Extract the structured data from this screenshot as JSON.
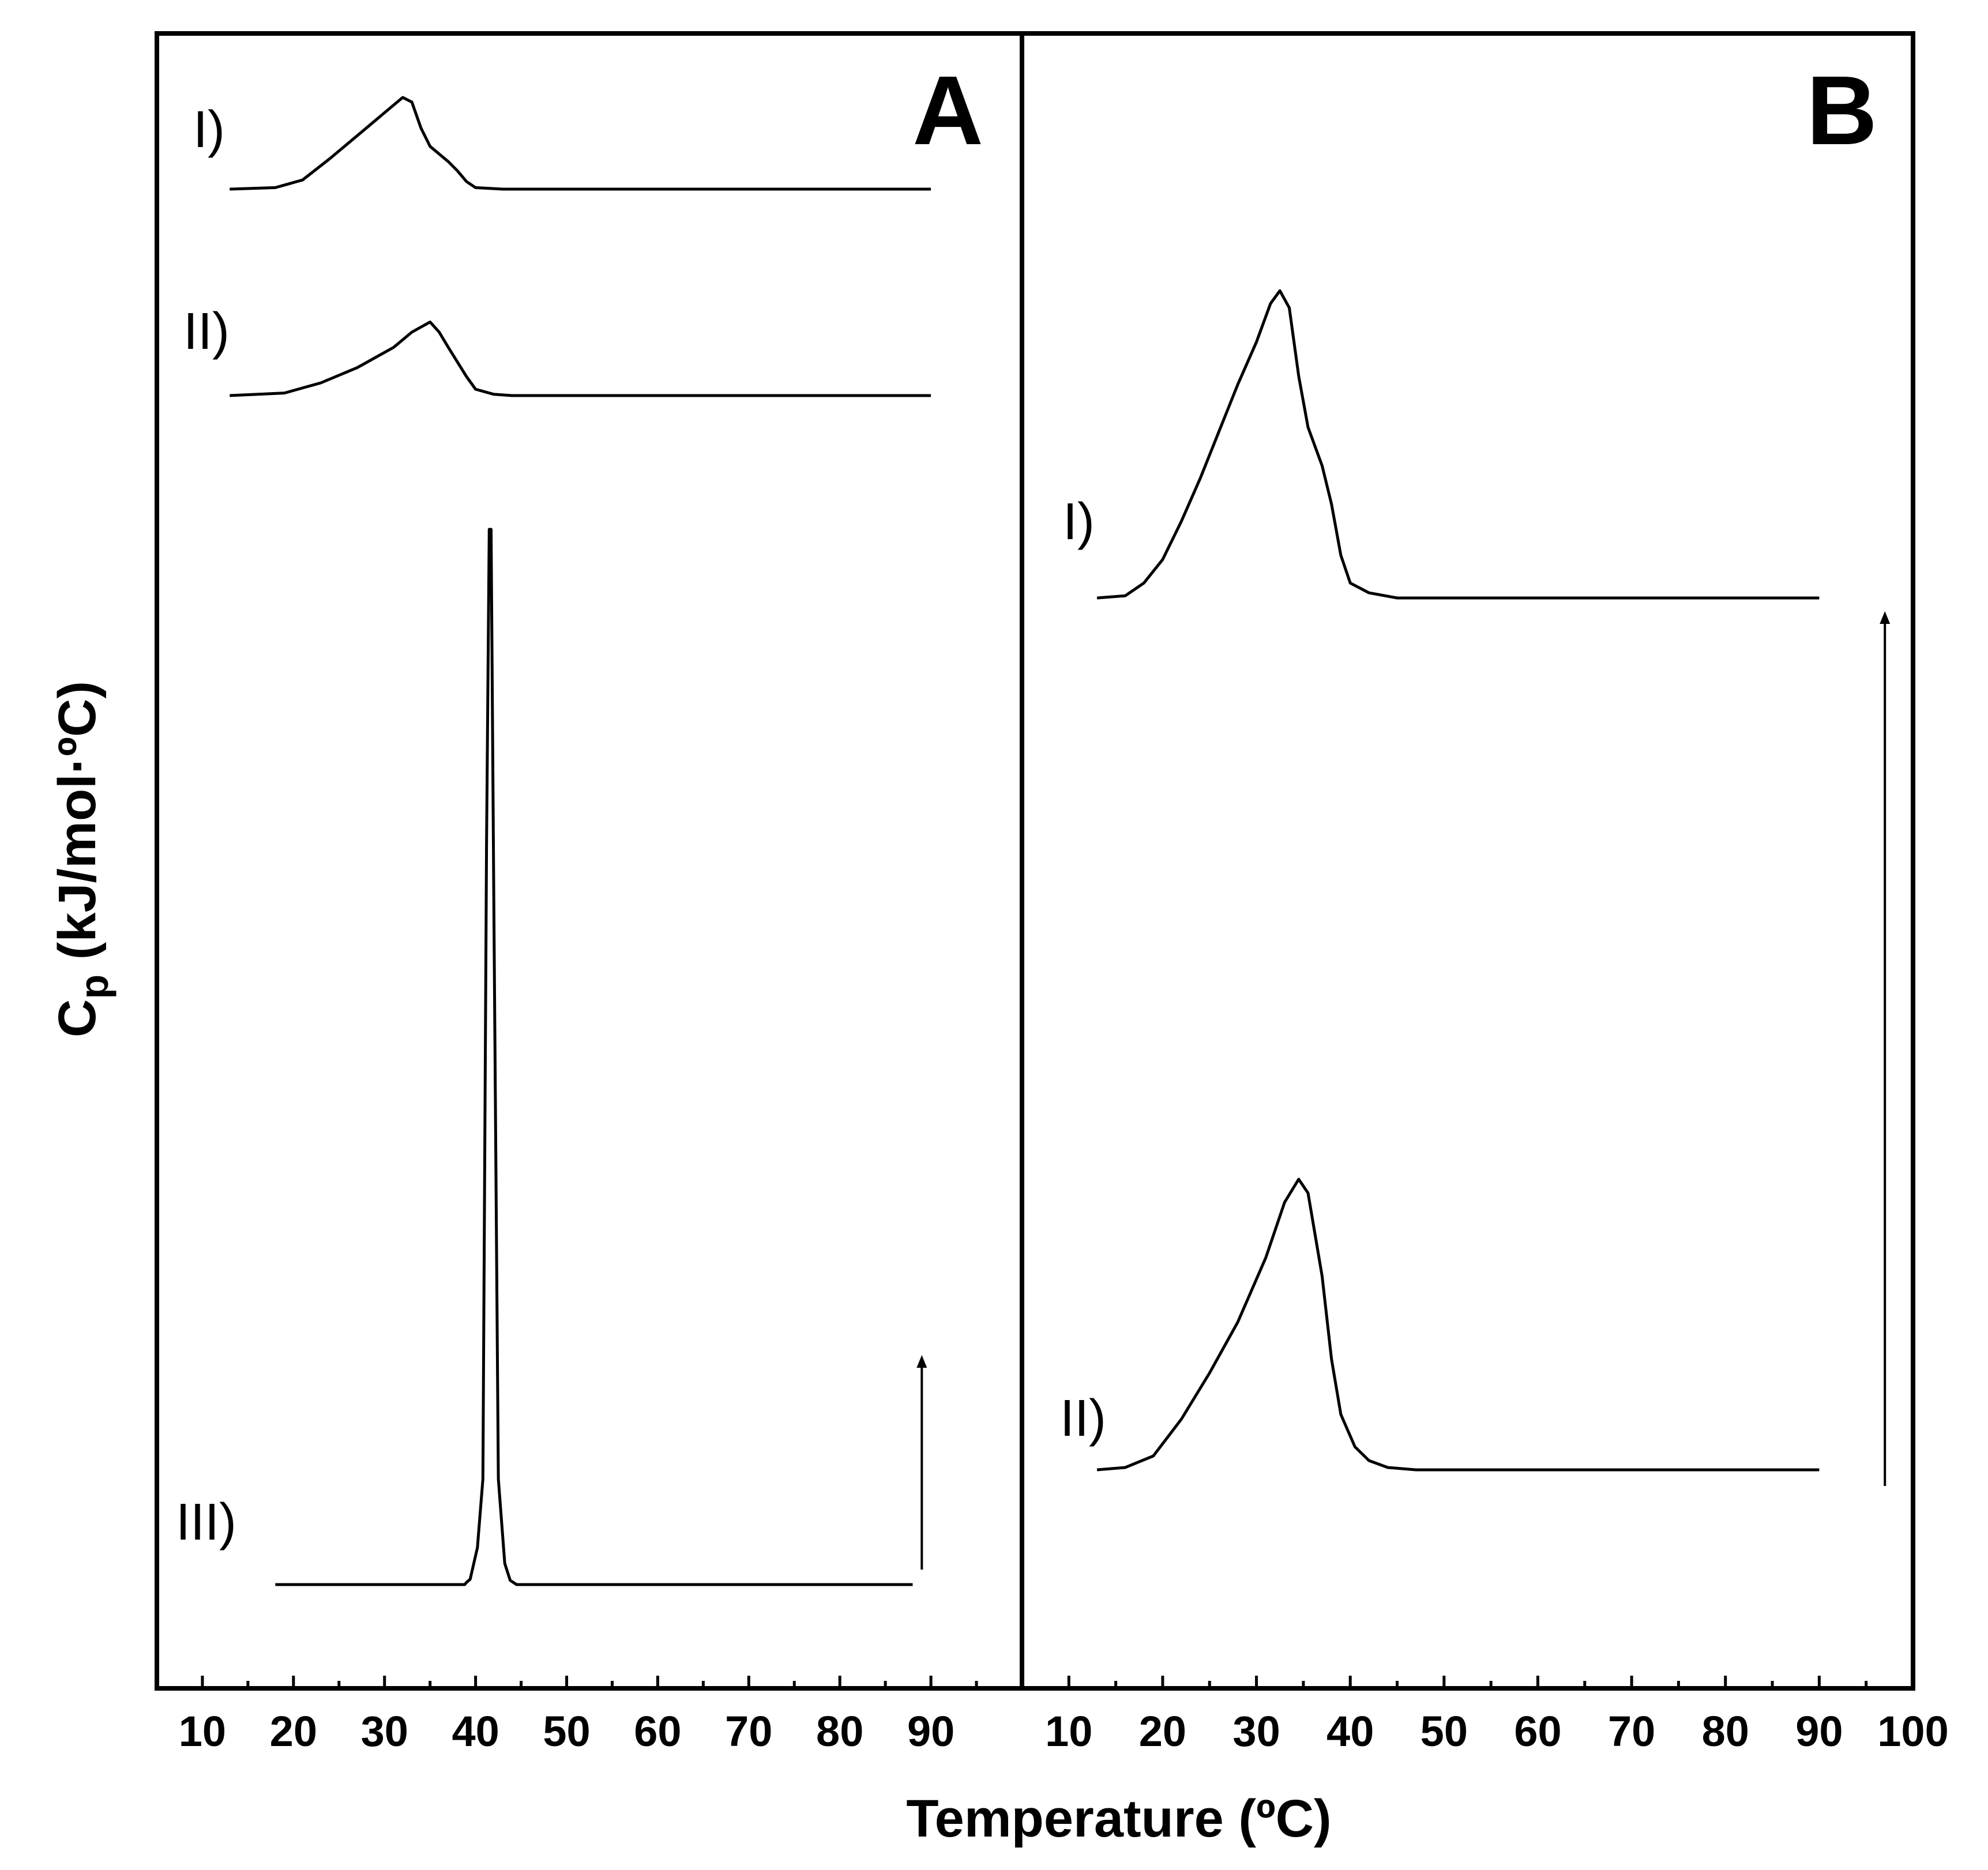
{
  "chart_data": [
    {
      "panel": "A",
      "type": "line",
      "xlabel": "Temperature (ºC)",
      "ylabel": "Cp (kJ/mol·ºC)",
      "ylabel_main": "C",
      "ylabel_sub": "p",
      "ylabel_rest": " (kJ/mol·ºC)",
      "xlim": [
        5,
        100
      ],
      "x_ticks": [
        10,
        20,
        30,
        40,
        50,
        60,
        70,
        80,
        90
      ],
      "grid": false,
      "legend": "none",
      "series": [
        {
          "label": "I)",
          "points": [
            [
              13,
              0
            ],
            [
              18,
              0.01
            ],
            [
              21,
              0.06
            ],
            [
              24,
              0.2
            ],
            [
              27,
              0.35
            ],
            [
              30,
              0.5
            ],
            [
              32,
              0.6
            ],
            [
              33,
              0.57
            ],
            [
              34,
              0.4
            ],
            [
              35,
              0.28
            ],
            [
              37,
              0.18
            ],
            [
              38,
              0.12
            ],
            [
              39,
              0.05
            ],
            [
              40,
              0.01
            ],
            [
              43,
              0
            ],
            [
              90,
              0
            ]
          ]
        },
        {
          "label": "II)",
          "points": [
            [
              13,
              0
            ],
            [
              19,
              0.02
            ],
            [
              23,
              0.1
            ],
            [
              27,
              0.22
            ],
            [
              31,
              0.38
            ],
            [
              33,
              0.5
            ],
            [
              35,
              0.58
            ],
            [
              36,
              0.5
            ],
            [
              37,
              0.38
            ],
            [
              39,
              0.15
            ],
            [
              40,
              0.05
            ],
            [
              42,
              0.01
            ],
            [
              44,
              0
            ],
            [
              90,
              0
            ]
          ]
        },
        {
          "label": "III)",
          "points": [
            [
              18,
              0
            ],
            [
              38.8,
              0
            ],
            [
              39,
              0.02
            ],
            [
              39.4,
              0.05
            ],
            [
              40.2,
              0.35
            ],
            [
              40.8,
              1.0
            ],
            [
              41.2,
              7.0
            ],
            [
              41.5,
              10.0
            ],
            [
              41.7,
              10.0
            ],
            [
              42,
              6.5
            ],
            [
              42.5,
              1.0
            ],
            [
              43.2,
              0.2
            ],
            [
              43.8,
              0.04
            ],
            [
              44.5,
              0
            ],
            [
              88,
              0
            ]
          ]
        }
      ],
      "scale_arrow": {
        "x": 89
      }
    },
    {
      "panel": "B",
      "type": "line",
      "xlim": [
        5,
        100
      ],
      "x_ticks": [
        10,
        20,
        30,
        40,
        50,
        60,
        70,
        80,
        90,
        100
      ],
      "grid": false,
      "legend": "none",
      "series": [
        {
          "label": "I)",
          "points": [
            [
              13,
              0
            ],
            [
              16,
              0.05
            ],
            [
              18,
              0.35
            ],
            [
              20,
              0.9
            ],
            [
              22,
              1.8
            ],
            [
              24,
              2.8
            ],
            [
              26,
              3.9
            ],
            [
              28,
              5.0
            ],
            [
              30,
              6.0
            ],
            [
              31.5,
              6.9
            ],
            [
              32.5,
              7.2
            ],
            [
              33.5,
              6.8
            ],
            [
              34.5,
              5.2
            ],
            [
              35.5,
              4.0
            ],
            [
              37,
              3.1
            ],
            [
              38,
              2.2
            ],
            [
              39,
              1.0
            ],
            [
              40,
              0.35
            ],
            [
              42,
              0.12
            ],
            [
              45,
              0
            ],
            [
              90,
              0
            ]
          ]
        },
        {
          "label": "II)",
          "points": [
            [
              13,
              0
            ],
            [
              16,
              0.05
            ],
            [
              19,
              0.3
            ],
            [
              22,
              1.1
            ],
            [
              25,
              2.1
            ],
            [
              28,
              3.2
            ],
            [
              31,
              4.6
            ],
            [
              33,
              5.8
            ],
            [
              34.5,
              6.3
            ],
            [
              35.5,
              6.0
            ],
            [
              37,
              4.2
            ],
            [
              38,
              2.4
            ],
            [
              39,
              1.2
            ],
            [
              40.5,
              0.5
            ],
            [
              42,
              0.2
            ],
            [
              44,
              0.05
            ],
            [
              47,
              0
            ],
            [
              90,
              0
            ]
          ]
        }
      ],
      "scale_arrow": {
        "x": 97
      }
    }
  ],
  "panels": {
    "a": {
      "letter": "A",
      "labels": [
        "I)",
        "II)",
        "III)"
      ]
    },
    "b": {
      "letter": "B",
      "labels": [
        "I)",
        "II)"
      ]
    }
  },
  "axes": {
    "x_title": "Temperature (ºC)"
  }
}
